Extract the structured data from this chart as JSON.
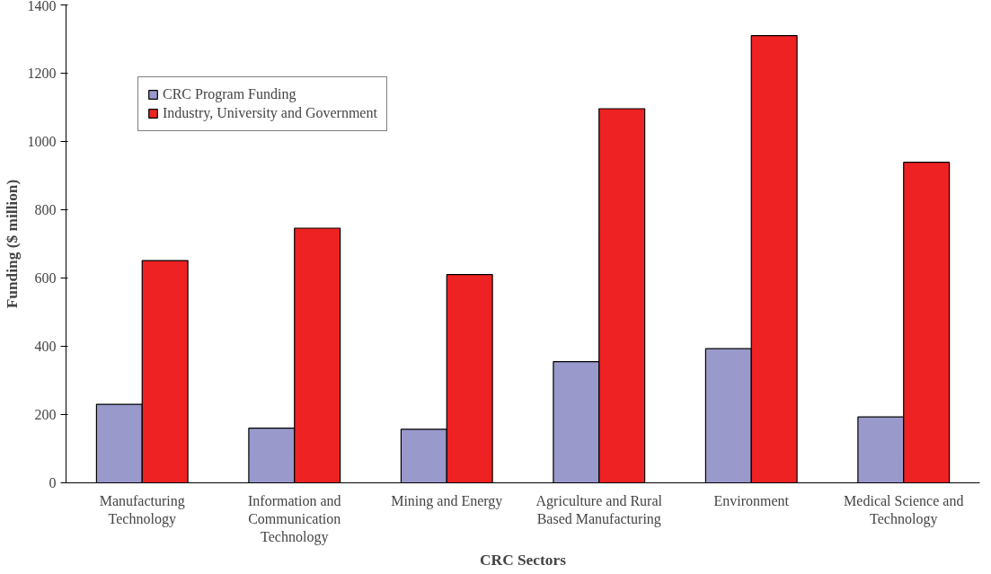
{
  "chart_data": {
    "type": "bar",
    "xlabel": "CRC Sectors",
    "ylabel": "Funding ($ million)",
    "categories": [
      "Manufacturing Technology",
      "Information and Communication Technology",
      "Mining and Energy",
      "Agriculture and Rural Based Manufacturing",
      "Environment",
      "Medical Science and Technology"
    ],
    "series": [
      {
        "name": "CRC Program Funding",
        "color": "#9999cc",
        "values": [
          230,
          160,
          157,
          355,
          393,
          193
        ]
      },
      {
        "name": "Industry, University and Government",
        "color": "#ee2222",
        "values": [
          651,
          746,
          610,
          1096,
          1310,
          939
        ]
      }
    ],
    "ylim": [
      0,
      1400
    ],
    "yticks": [
      0,
      200,
      400,
      600,
      800,
      1000,
      1200,
      1400
    ],
    "grid": false,
    "legend": "top left"
  }
}
